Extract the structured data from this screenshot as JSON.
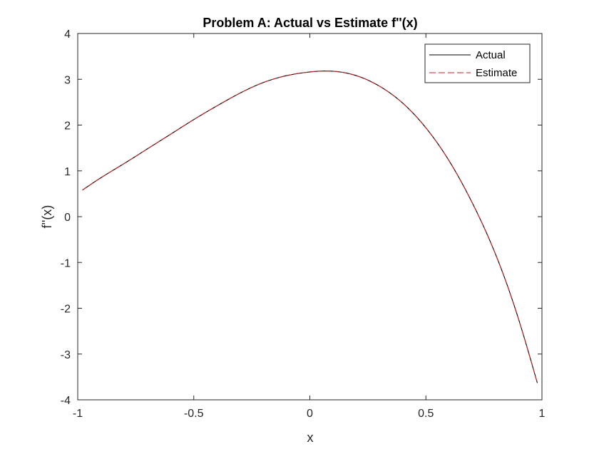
{
  "chart_data": {
    "type": "line",
    "title": "Problem A: Actual vs Estimate f''(x)",
    "xlabel": "x",
    "ylabel": "f''(x)",
    "xlim": [
      -1,
      1
    ],
    "ylim": [
      -4,
      4
    ],
    "x_ticks": [
      -1,
      -0.5,
      0,
      0.5,
      1
    ],
    "x_tick_labels": [
      "-1",
      "-0.5",
      "0",
      "0.5",
      "1"
    ],
    "y_ticks": [
      -4,
      -3,
      -2,
      -1,
      0,
      1,
      2,
      3,
      4
    ],
    "y_tick_labels": [
      "-4",
      "-3",
      "-2",
      "-1",
      "0",
      "1",
      "2",
      "3",
      "4"
    ],
    "grid": false,
    "legend": "top-right",
    "x": [
      -0.98,
      -0.9,
      -0.8,
      -0.7,
      -0.6,
      -0.5,
      -0.4,
      -0.3,
      -0.2,
      -0.1,
      0,
      0.08,
      0.2,
      0.3,
      0.4,
      0.5,
      0.6,
      0.7,
      0.8,
      0.9,
      0.98
    ],
    "series": [
      {
        "name": "Actual",
        "color": "#000000",
        "style": "solid",
        "values": [
          0.58,
          0.85,
          1.16,
          1.48,
          1.8,
          2.12,
          2.42,
          2.7,
          2.93,
          3.08,
          3.16,
          3.18,
          3.08,
          2.85,
          2.48,
          1.94,
          1.22,
          0.3,
          -0.82,
          -2.25,
          -3.63
        ]
      },
      {
        "name": "Estimate",
        "color": "#c8201f",
        "style": "dashed",
        "values": [
          0.58,
          0.85,
          1.16,
          1.48,
          1.8,
          2.12,
          2.42,
          2.7,
          2.93,
          3.08,
          3.16,
          3.18,
          3.08,
          2.85,
          2.48,
          1.94,
          1.22,
          0.3,
          -0.82,
          -2.25,
          -3.63
        ]
      }
    ]
  }
}
